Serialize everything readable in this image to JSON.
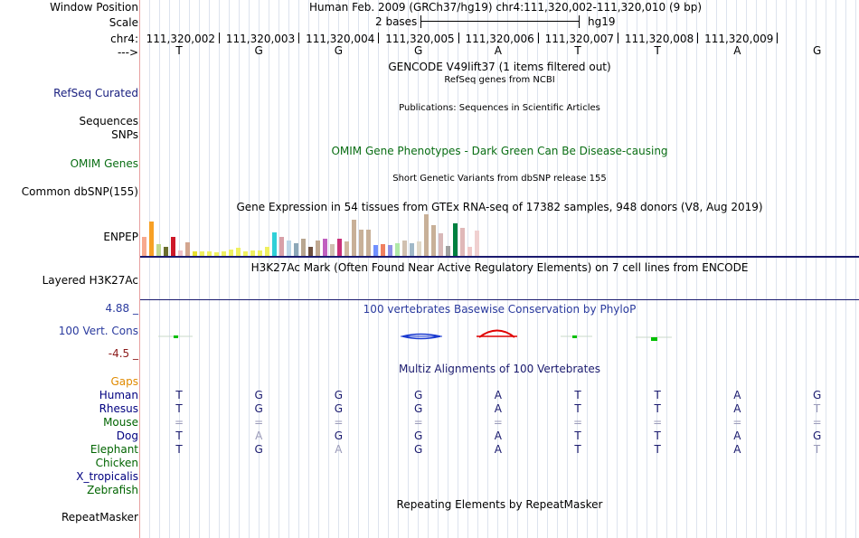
{
  "header": {
    "window_position_label": "Window Position",
    "scale_label": "Scale",
    "chrom_label": "chr4:",
    "strand_label": "--->",
    "assembly_text": "Human Feb. 2009 (GRCh37/hg19)   chr4:111,320,002-111,320,010 (9 bp)",
    "scale_text": "2 bases",
    "scale_db": "hg19",
    "positions": [
      "111,320,002",
      "111,320,003",
      "111,320,004",
      "111,320,005",
      "111,320,006",
      "111,320,007",
      "111,320,008",
      "111,320,009"
    ]
  },
  "reference_bases": [
    "T",
    "G",
    "G",
    "G",
    "A",
    "T",
    "T",
    "A",
    "G"
  ],
  "tracks": {
    "gencode_title": "GENCODE V49lift37 (1 items filtered out)",
    "refseq_sub": "RefSeq genes from NCBI",
    "refseq_label": "RefSeq Curated",
    "publications_sub": "Publications: Sequences in Scientific Articles",
    "sequences_label": "Sequences",
    "snps_label": "SNPs",
    "omim_title": "OMIM Gene Phenotypes - Dark Green Can Be Disease-causing",
    "omim_label": "OMIM Genes",
    "dbsnp_sub": "Short Genetic Variants from dbSNP release 155",
    "dbsnp_label": "Common dbSNP(155)",
    "gtex_title": "Gene Expression in 54 tissues from GTEx RNA-seq of 17382 samples, 948 donors (V8, Aug 2019)",
    "gtex_label": "ENPEP",
    "h3k27_title": "H3K27Ac Mark (Often Found Near Active Regulatory Elements) on 7 cell lines from ENCODE",
    "h3k27_label": "Layered H3K27Ac",
    "phylop_title": "100 vertebrates Basewise Conservation by PhyloP",
    "phylop_label": "100 Vert. Cons",
    "phylop_max": "4.88 _",
    "phylop_min": "-4.5 _",
    "multiz_title": "Multiz Alignments of 100 Vertebrates",
    "gaps_label": "Gaps",
    "repeat_title": "Repeating Elements by RepeatMasker",
    "repeat_label": "RepeatMasker"
  },
  "alignments": [
    {
      "species": "Human",
      "color": "#000080",
      "bases": [
        "T",
        "G",
        "G",
        "G",
        "A",
        "T",
        "T",
        "A",
        "G"
      ],
      "dim": []
    },
    {
      "species": "Rhesus",
      "color": "#000080",
      "bases": [
        "T",
        "G",
        "G",
        "G",
        "A",
        "T",
        "T",
        "A",
        "T"
      ],
      "dim": [
        8
      ]
    },
    {
      "species": "Mouse",
      "color": "#006400",
      "bases": [
        "=",
        "=",
        "=",
        "=",
        "=",
        "=",
        "=",
        "=",
        "="
      ],
      "dim": [
        0,
        1,
        2,
        3,
        4,
        5,
        6,
        7,
        8
      ]
    },
    {
      "species": "Dog",
      "color": "#000080",
      "bases": [
        "T",
        "A",
        "G",
        "G",
        "A",
        "T",
        "T",
        "A",
        "G"
      ],
      "dim": [
        1
      ]
    },
    {
      "species": "Elephant",
      "color": "#006400",
      "bases": [
        "T",
        "G",
        "A",
        "G",
        "A",
        "T",
        "T",
        "A",
        "T"
      ],
      "dim": [
        2,
        8
      ]
    },
    {
      "species": "Chicken",
      "color": "#006400",
      "bases": [],
      "dim": []
    },
    {
      "species": "X_tropicalis",
      "color": "#000080",
      "bases": [],
      "dim": []
    },
    {
      "species": "Zebrafish",
      "color": "#006400",
      "bases": [],
      "dim": []
    }
  ],
  "gtex_values": [
    22,
    40,
    14,
    10,
    22,
    6,
    16,
    5,
    5,
    5,
    4,
    5,
    7,
    9,
    5,
    6,
    6,
    10,
    27,
    22,
    18,
    15,
    20,
    10,
    18,
    20,
    14,
    20,
    17,
    42,
    30,
    30,
    12,
    14,
    12,
    15,
    18,
    15,
    17,
    48,
    35,
    26,
    11,
    38,
    32,
    10,
    29
  ],
  "gtex_colors": [
    "#f7a98e",
    "#f7a025",
    "#c0d890",
    "#6a6e2e",
    "#cd1829",
    "#f0c0c8",
    "#d3a68f",
    "#e8e030",
    "#f0f060",
    "#f0f060",
    "#f0f060",
    "#f0f060",
    "#f0f060",
    "#f0f060",
    "#f0f060",
    "#f0f060",
    "#f0f060",
    "#f0f060",
    "#2fd0d8",
    "#d8a0a8",
    "#bcd6e8",
    "#8ca7b8",
    "#b8a690",
    "#6e5040",
    "#c0a890",
    "#c060c0",
    "#d0c0b0",
    "#c8307a",
    "#d0b8a0",
    "#c8b098",
    "#c8b098",
    "#c8b098",
    "#7090ff",
    "#f08060",
    "#9090e8",
    "#b0e8a8",
    "#d0c0b0",
    "#a0b8c8",
    "#e0d8c8",
    "#c8b098",
    "#c8b098",
    "#d8b8b8",
    "#a0a0a0",
    "#008040",
    "#e0b8b8",
    "#f0c8c8",
    "#f0d0d0"
  ]
}
